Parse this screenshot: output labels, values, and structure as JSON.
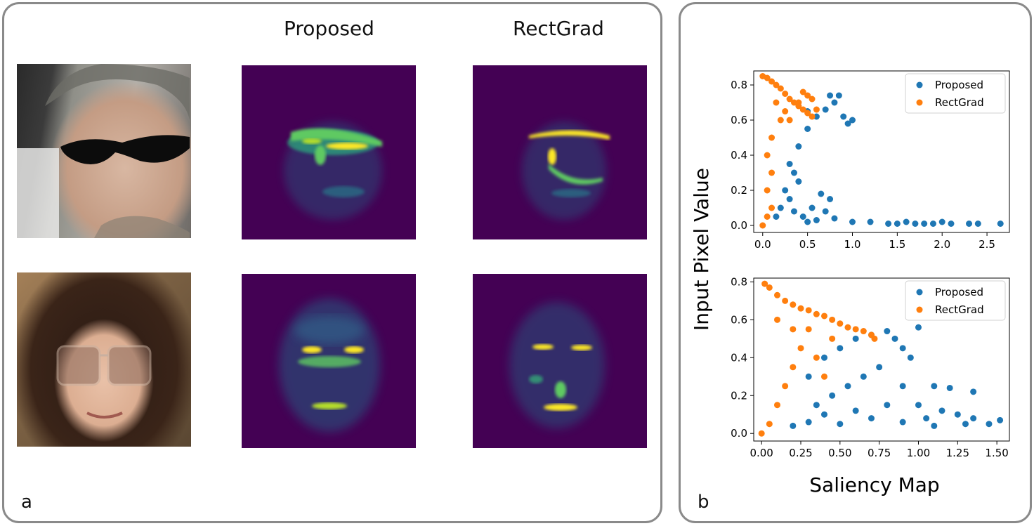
{
  "panel_a": {
    "label": "a",
    "column_titles": [
      "Proposed",
      "RectGrad"
    ]
  },
  "panel_b": {
    "label": "b",
    "xlabel": "Saliency Map",
    "ylabel": "Input Pixel Value"
  },
  "colors": {
    "proposed": "#1f77b4",
    "rectgrad": "#ff7f0e",
    "viridis_bg": "#440154",
    "viridis_hot": "#fde725"
  },
  "chart_data": [
    {
      "type": "scatter",
      "title": "",
      "xlabel": "",
      "ylabel": "",
      "xlim": [
        -0.1,
        2.75
      ],
      "ylim": [
        -0.04,
        0.88
      ],
      "xticks": [
        0.0,
        0.5,
        1.0,
        1.5,
        2.0,
        2.5
      ],
      "xtick_labels": [
        "0.0",
        "0.5",
        "1.0",
        "1.5",
        "2.0",
        "2.5"
      ],
      "yticks": [
        0.0,
        0.2,
        0.4,
        0.6,
        0.8
      ],
      "ytick_labels": [
        "0.0",
        "0.2",
        "0.4",
        "0.6",
        "0.8"
      ],
      "legend": "top-right",
      "series": [
        {
          "name": "Proposed",
          "points": [
            [
              0.3,
              0.15
            ],
            [
              0.35,
              0.3
            ],
            [
              0.4,
              0.45
            ],
            [
              0.5,
              0.55
            ],
            [
              0.6,
              0.62
            ],
            [
              0.7,
              0.66
            ],
            [
              0.8,
              0.7
            ],
            [
              0.9,
              0.62
            ],
            [
              1.0,
              0.6
            ],
            [
              0.95,
              0.58
            ],
            [
              0.75,
              0.74
            ],
            [
              0.85,
              0.74
            ],
            [
              0.5,
              0.65
            ],
            [
              0.3,
              0.35
            ],
            [
              0.25,
              0.2
            ],
            [
              0.45,
              0.05
            ],
            [
              0.6,
              0.03
            ],
            [
              0.8,
              0.04
            ],
            [
              1.0,
              0.02
            ],
            [
              1.2,
              0.02
            ],
            [
              1.4,
              0.01
            ],
            [
              1.5,
              0.01
            ],
            [
              1.6,
              0.02
            ],
            [
              1.7,
              0.01
            ],
            [
              1.8,
              0.01
            ],
            [
              1.9,
              0.01
            ],
            [
              2.0,
              0.02
            ],
            [
              2.1,
              0.01
            ],
            [
              2.3,
              0.01
            ],
            [
              2.4,
              0.01
            ],
            [
              2.65,
              0.01
            ],
            [
              0.65,
              0.18
            ],
            [
              0.75,
              0.15
            ],
            [
              0.55,
              0.1
            ],
            [
              0.4,
              0.25
            ],
            [
              0.2,
              0.1
            ],
            [
              0.15,
              0.05
            ],
            [
              0.35,
              0.08
            ],
            [
              0.5,
              0.02
            ],
            [
              0.7,
              0.08
            ]
          ]
        },
        {
          "name": "RectGrad",
          "points": [
            [
              0.0,
              0.85
            ],
            [
              0.05,
              0.84
            ],
            [
              0.1,
              0.82
            ],
            [
              0.15,
              0.8
            ],
            [
              0.2,
              0.78
            ],
            [
              0.25,
              0.75
            ],
            [
              0.3,
              0.72
            ],
            [
              0.35,
              0.7
            ],
            [
              0.4,
              0.68
            ],
            [
              0.45,
              0.66
            ],
            [
              0.5,
              0.64
            ],
            [
              0.55,
              0.62
            ],
            [
              0.6,
              0.66
            ],
            [
              0.55,
              0.72
            ],
            [
              0.5,
              0.74
            ],
            [
              0.45,
              0.76
            ],
            [
              0.4,
              0.7
            ],
            [
              0.2,
              0.6
            ],
            [
              0.1,
              0.5
            ],
            [
              0.05,
              0.4
            ],
            [
              0.1,
              0.3
            ],
            [
              0.05,
              0.2
            ],
            [
              0.1,
              0.1
            ],
            [
              0.0,
              0.0
            ],
            [
              0.05,
              0.05
            ],
            [
              0.15,
              0.7
            ],
            [
              0.25,
              0.65
            ],
            [
              0.3,
              0.6
            ]
          ]
        }
      ]
    },
    {
      "type": "scatter",
      "title": "",
      "xlabel": "",
      "ylabel": "",
      "xlim": [
        -0.05,
        1.58
      ],
      "ylim": [
        -0.04,
        0.82
      ],
      "xticks": [
        0.0,
        0.25,
        0.5,
        0.75,
        1.0,
        1.25,
        1.5
      ],
      "xtick_labels": [
        "0.00",
        "0.25",
        "0.50",
        "0.75",
        "1.00",
        "1.25",
        "1.50"
      ],
      "yticks": [
        0.0,
        0.2,
        0.4,
        0.6,
        0.8
      ],
      "ytick_labels": [
        "0.0",
        "0.2",
        "0.4",
        "0.6",
        "0.8"
      ],
      "legend": "top-right",
      "series": [
        {
          "name": "Proposed",
          "points": [
            [
              0.3,
              0.3
            ],
            [
              0.4,
              0.4
            ],
            [
              0.5,
              0.45
            ],
            [
              0.6,
              0.5
            ],
            [
              0.7,
              0.52
            ],
            [
              0.8,
              0.54
            ],
            [
              0.85,
              0.5
            ],
            [
              0.9,
              0.45
            ],
            [
              0.95,
              0.4
            ],
            [
              1.0,
              0.56
            ],
            [
              0.75,
              0.35
            ],
            [
              0.65,
              0.3
            ],
            [
              0.55,
              0.25
            ],
            [
              0.45,
              0.2
            ],
            [
              0.35,
              0.15
            ],
            [
              0.9,
              0.25
            ],
            [
              1.1,
              0.25
            ],
            [
              1.2,
              0.24
            ],
            [
              1.35,
              0.22
            ],
            [
              1.0,
              0.15
            ],
            [
              1.15,
              0.12
            ],
            [
              1.25,
              0.1
            ],
            [
              1.35,
              0.08
            ],
            [
              1.45,
              0.05
            ],
            [
              1.52,
              0.07
            ],
            [
              0.5,
              0.05
            ],
            [
              0.7,
              0.08
            ],
            [
              0.9,
              0.06
            ],
            [
              1.1,
              0.04
            ],
            [
              1.3,
              0.05
            ],
            [
              0.3,
              0.06
            ],
            [
              0.4,
              0.1
            ],
            [
              0.6,
              0.12
            ],
            [
              0.8,
              0.15
            ],
            [
              1.05,
              0.08
            ],
            [
              0.2,
              0.04
            ]
          ]
        },
        {
          "name": "RectGrad",
          "points": [
            [
              0.02,
              0.79
            ],
            [
              0.05,
              0.77
            ],
            [
              0.1,
              0.73
            ],
            [
              0.15,
              0.7
            ],
            [
              0.2,
              0.68
            ],
            [
              0.25,
              0.66
            ],
            [
              0.3,
              0.65
            ],
            [
              0.35,
              0.63
            ],
            [
              0.4,
              0.62
            ],
            [
              0.45,
              0.6
            ],
            [
              0.5,
              0.58
            ],
            [
              0.55,
              0.56
            ],
            [
              0.6,
              0.55
            ],
            [
              0.65,
              0.54
            ],
            [
              0.7,
              0.52
            ],
            [
              0.72,
              0.5
            ],
            [
              0.3,
              0.55
            ],
            [
              0.25,
              0.45
            ],
            [
              0.2,
              0.35
            ],
            [
              0.15,
              0.25
            ],
            [
              0.1,
              0.15
            ],
            [
              0.05,
              0.05
            ],
            [
              0.0,
              0.0
            ],
            [
              0.35,
              0.4
            ],
            [
              0.45,
              0.5
            ],
            [
              0.4,
              0.3
            ],
            [
              0.2,
              0.55
            ],
            [
              0.1,
              0.6
            ]
          ]
        }
      ]
    }
  ]
}
